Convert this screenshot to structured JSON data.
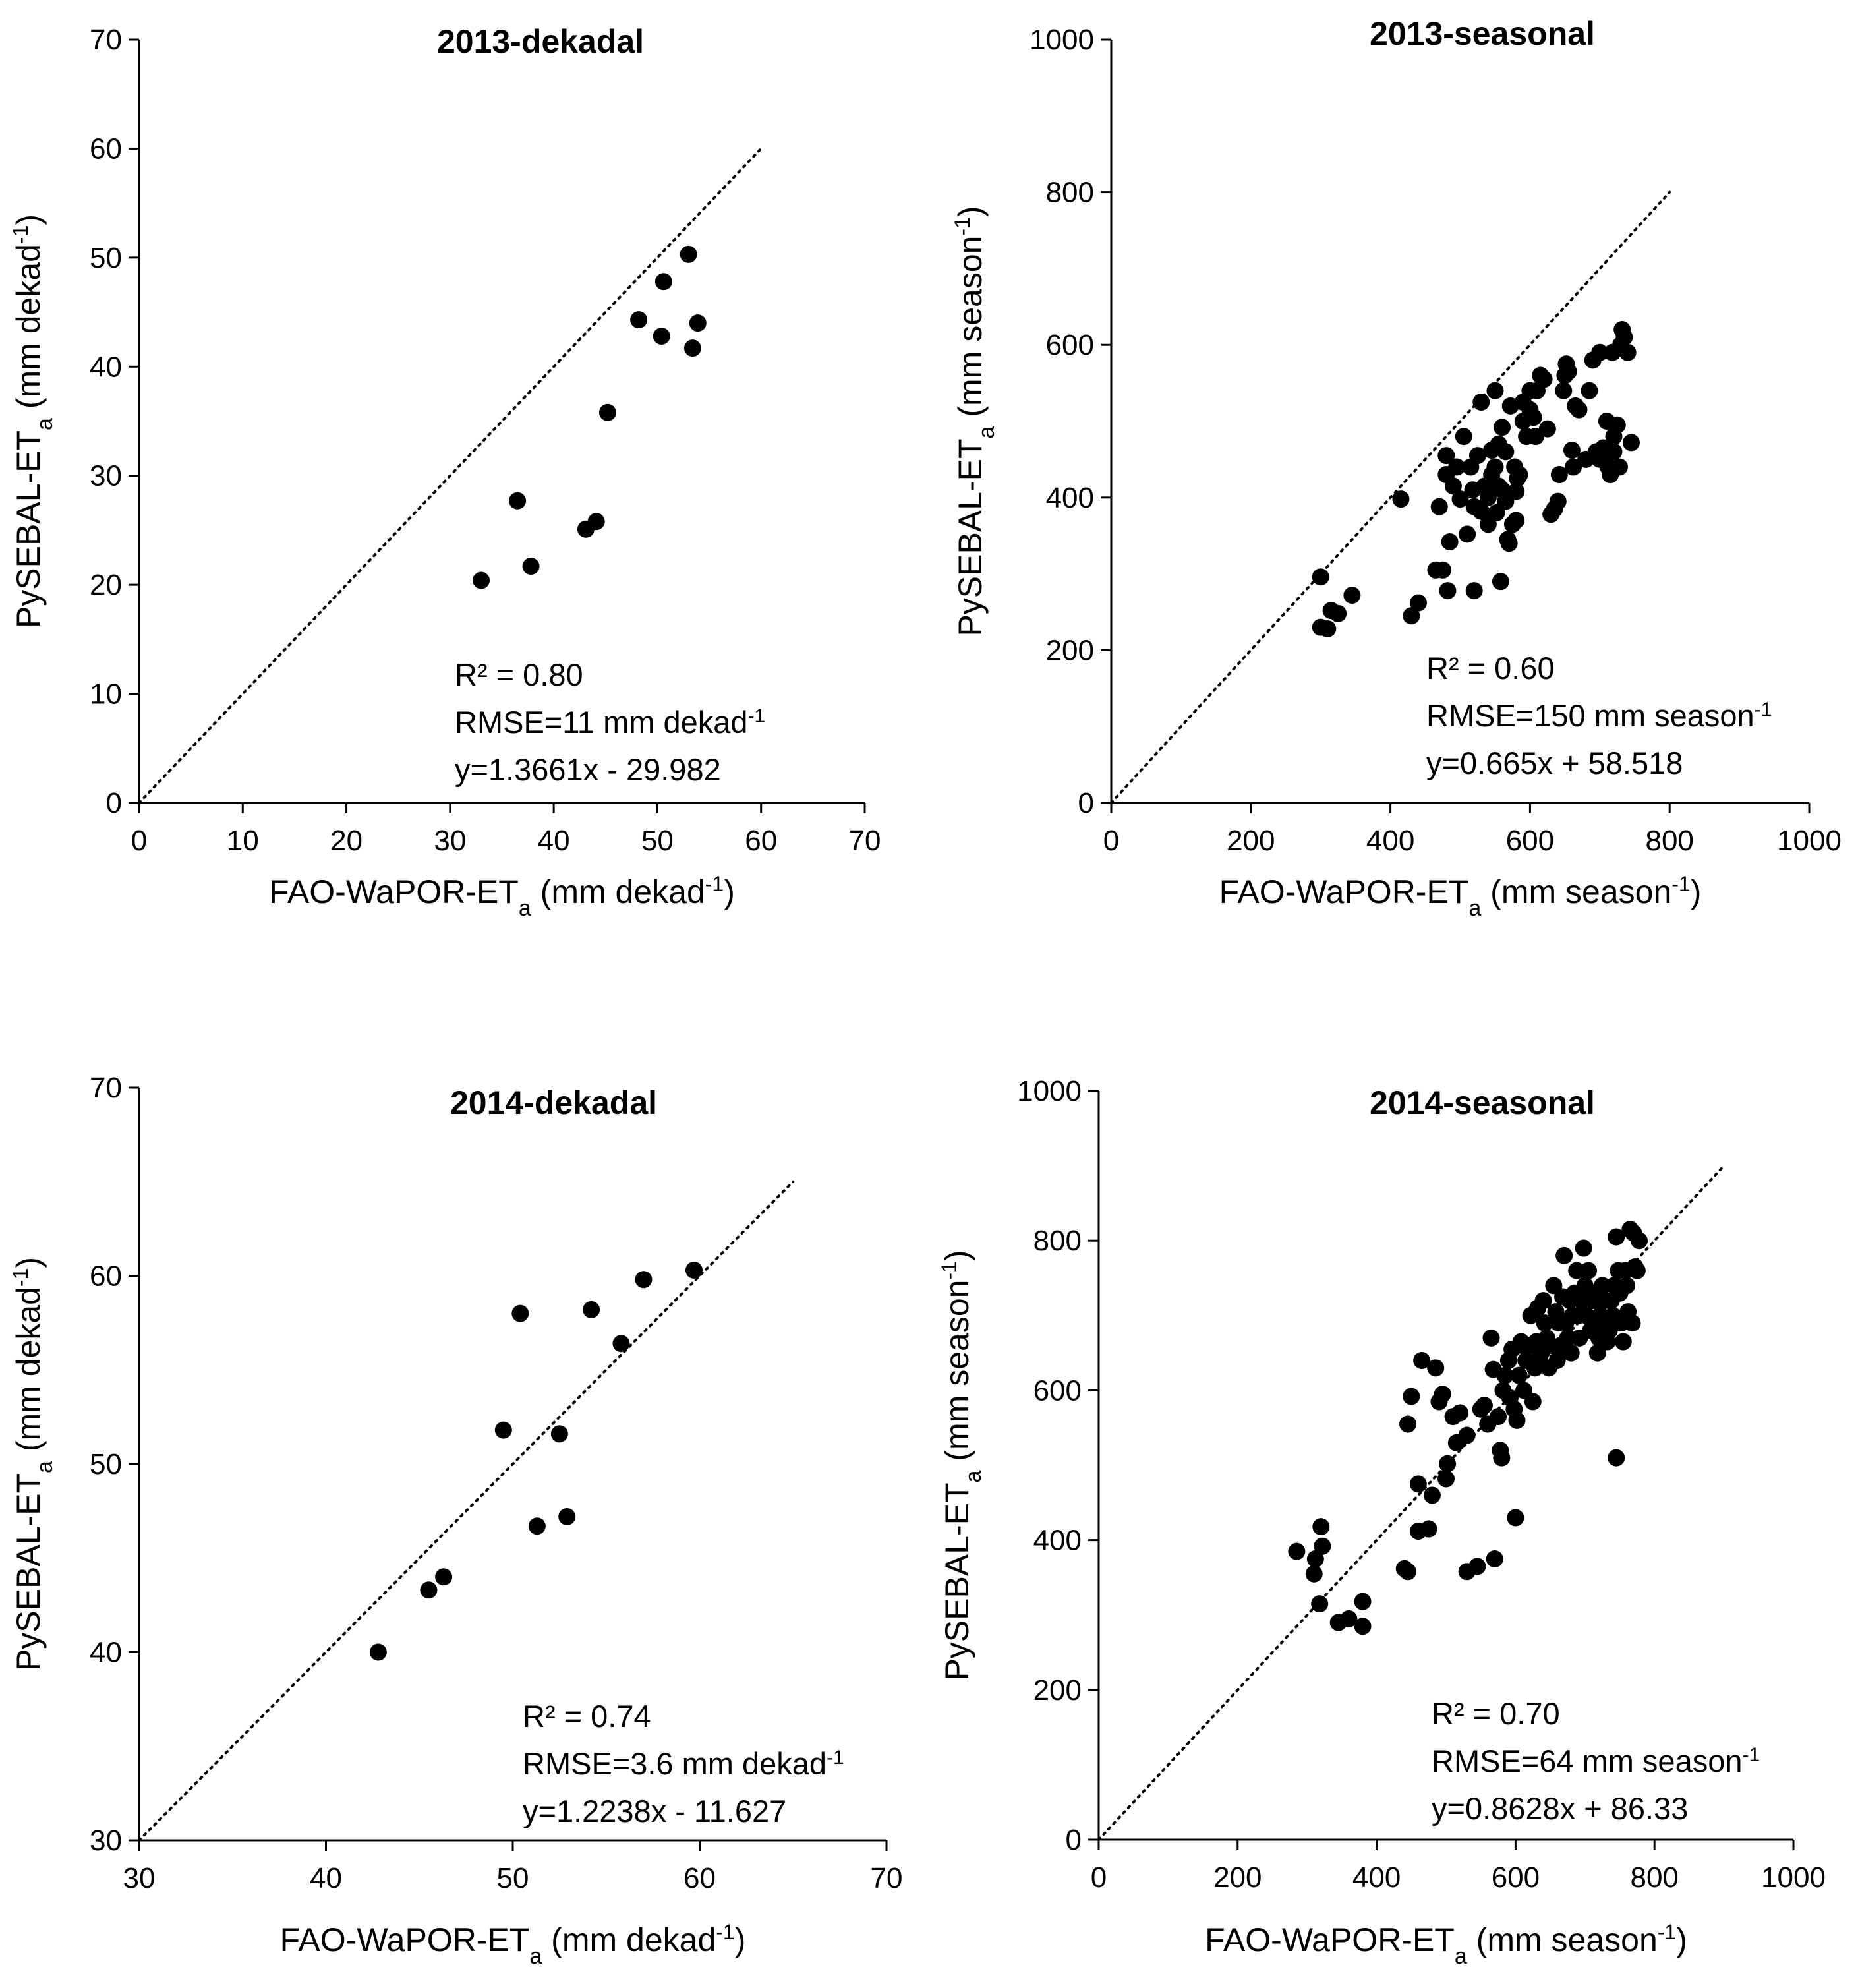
{
  "chart_data": [
    {
      "type": "scatter",
      "title": "2013-dekadal",
      "xlabel": {
        "main": "FAO-WaPOR-ET",
        "sub": "a",
        "unit_pre": " (mm dekad",
        "sup": "-1",
        "unit_post": ")"
      },
      "ylabel": {
        "main": "PySEBAL-ET",
        "sub": "a",
        "unit_pre": " (mm dekad",
        "sup": "-1",
        "unit_post": ")"
      },
      "xlim": [
        0,
        70
      ],
      "ylim": [
        0,
        70
      ],
      "xticks": [
        0,
        10,
        20,
        30,
        40,
        50,
        60,
        70
      ],
      "yticks": [
        0,
        10,
        20,
        30,
        40,
        50,
        60,
        70
      ],
      "one_to_one_line": [
        [
          0,
          0
        ],
        [
          60,
          60
        ]
      ],
      "stats": {
        "r2": "R² = 0.80",
        "rmse_pre": "RMSE=11 mm dekad",
        "rmse_sup": "-1",
        "equation": "y=1.3661x - 29.982"
      },
      "points": [
        [
          33.0,
          20.4
        ],
        [
          36.5,
          27.7
        ],
        [
          37.8,
          21.7
        ],
        [
          43.1,
          25.1
        ],
        [
          44.1,
          25.8
        ],
        [
          45.2,
          35.8
        ],
        [
          48.2,
          44.3
        ],
        [
          50.4,
          42.8
        ],
        [
          50.6,
          47.8
        ],
        [
          53.0,
          50.3
        ],
        [
          53.4,
          41.7
        ],
        [
          53.9,
          44.0
        ]
      ]
    },
    {
      "type": "scatter",
      "title": "2013-seasonal",
      "xlabel": {
        "main": "FAO-WaPOR-ET",
        "sub": "a",
        "unit_pre": " (mm season",
        "sup": "-1",
        "unit_post": ")"
      },
      "ylabel": {
        "main": "PySEBAL-ET",
        "sub": "a",
        "unit_pre": " (mm season",
        "sup": "-1",
        "unit_post": ")"
      },
      "xlim": [
        0,
        1000
      ],
      "ylim": [
        0,
        1000
      ],
      "xticks": [
        0,
        200,
        400,
        600,
        800,
        1000
      ],
      "yticks": [
        0,
        200,
        400,
        600,
        800,
        1000
      ],
      "one_to_one_line": [
        [
          0,
          0
        ],
        [
          800,
          800
        ]
      ],
      "stats": {
        "r2": "R² = 0.60",
        "rmse_pre": "RMSE=150 mm season",
        "rmse_sup": "-1",
        "equation": "y=0.665x + 58.518"
      },
      "points": [
        [
          300,
          296
        ],
        [
          300,
          230
        ],
        [
          310,
          228
        ],
        [
          315,
          252
        ],
        [
          325,
          248
        ],
        [
          345,
          272
        ],
        [
          415,
          398
        ],
        [
          430,
          245
        ],
        [
          440,
          262
        ],
        [
          465,
          305
        ],
        [
          470,
          388
        ],
        [
          475,
          305
        ],
        [
          480,
          455
        ],
        [
          480,
          430
        ],
        [
          482,
          278
        ],
        [
          485,
          342
        ],
        [
          490,
          415
        ],
        [
          495,
          440
        ],
        [
          500,
          398
        ],
        [
          505,
          480
        ],
        [
          510,
          352
        ],
        [
          515,
          440
        ],
        [
          518,
          410
        ],
        [
          520,
          388
        ],
        [
          520,
          278
        ],
        [
          525,
          455
        ],
        [
          530,
          525
        ],
        [
          530,
          382
        ],
        [
          535,
          415
        ],
        [
          540,
          400
        ],
        [
          540,
          365
        ],
        [
          545,
          430
        ],
        [
          545,
          462
        ],
        [
          550,
          540
        ],
        [
          550,
          440
        ],
        [
          552,
          380
        ],
        [
          555,
          415
        ],
        [
          555,
          470
        ],
        [
          558,
          290
        ],
        [
          560,
          492
        ],
        [
          560,
          410
        ],
        [
          565,
          460
        ],
        [
          565,
          395
        ],
        [
          568,
          345
        ],
        [
          570,
          340
        ],
        [
          572,
          520
        ],
        [
          575,
          365
        ],
        [
          578,
          440
        ],
        [
          580,
          370
        ],
        [
          580,
          408
        ],
        [
          582,
          425
        ],
        [
          585,
          430
        ],
        [
          590,
          500
        ],
        [
          590,
          525
        ],
        [
          595,
          480
        ],
        [
          600,
          540
        ],
        [
          600,
          515
        ],
        [
          605,
          505
        ],
        [
          608,
          480
        ],
        [
          610,
          540
        ],
        [
          615,
          560
        ],
        [
          620,
          555
        ],
        [
          625,
          490
        ],
        [
          630,
          378
        ],
        [
          635,
          385
        ],
        [
          640,
          395
        ],
        [
          642,
          430
        ],
        [
          648,
          540
        ],
        [
          650,
          560
        ],
        [
          652,
          575
        ],
        [
          655,
          565
        ],
        [
          660,
          462
        ],
        [
          662,
          440
        ],
        [
          665,
          520
        ],
        [
          670,
          515
        ],
        [
          680,
          450
        ],
        [
          685,
          540
        ],
        [
          690,
          580
        ],
        [
          695,
          460
        ],
        [
          700,
          590
        ],
        [
          700,
          450
        ],
        [
          705,
          465
        ],
        [
          710,
          500
        ],
        [
          712,
          440
        ],
        [
          715,
          430
        ],
        [
          715,
          462
        ],
        [
          718,
          590
        ],
        [
          720,
          480
        ],
        [
          720,
          460
        ],
        [
          725,
          495
        ],
        [
          728,
          440
        ],
        [
          730,
          600
        ],
        [
          732,
          620
        ],
        [
          735,
          610
        ],
        [
          740,
          590
        ],
        [
          745,
          472
        ]
      ]
    },
    {
      "type": "scatter",
      "title": "2014-dekadal",
      "xlabel": {
        "main": "FAO-WaPOR-ET",
        "sub": "a",
        "unit_pre": " (mm dekad",
        "sup": "-1",
        "unit_post": ")"
      },
      "ylabel": {
        "main": "PySEBAL-ET",
        "sub": "a",
        "unit_pre": " (mm dekad",
        "sup": "-1",
        "unit_post": ")"
      },
      "xlim": [
        30,
        70
      ],
      "ylim": [
        30,
        70
      ],
      "xticks": [
        30,
        40,
        50,
        60,
        70
      ],
      "yticks": [
        30,
        40,
        50,
        60,
        70
      ],
      "one_to_one_line": [
        [
          30,
          30
        ],
        [
          65,
          65
        ]
      ],
      "stats": {
        "r2": "R² = 0.74",
        "rmse_pre": "RMSE=3.6 mm dekad",
        "rmse_sup": "-1",
        "equation": "y=1.2238x - 11.627"
      },
      "points": [
        [
          42.8,
          40.0
        ],
        [
          45.5,
          43.3
        ],
        [
          46.3,
          44.0
        ],
        [
          49.5,
          51.8
        ],
        [
          50.4,
          58.0
        ],
        [
          51.3,
          46.7
        ],
        [
          52.5,
          51.6
        ],
        [
          52.9,
          47.2
        ],
        [
          54.2,
          58.2
        ],
        [
          55.8,
          56.4
        ],
        [
          57.0,
          59.8
        ],
        [
          59.7,
          60.3
        ]
      ]
    },
    {
      "type": "scatter",
      "title": "2014-seasonal",
      "xlabel": {
        "main": "FAO-WaPOR-ET",
        "sub": "a",
        "unit_pre": " (mm season",
        "sup": "-1",
        "unit_post": ")"
      },
      "ylabel": {
        "main": "PySEBAL-ET",
        "sub": "a",
        "unit_pre": " (mm season",
        "sup": "-1",
        "unit_post": ")"
      },
      "xlim": [
        0,
        1000
      ],
      "ylim": [
        0,
        1000
      ],
      "xticks": [
        0,
        200,
        400,
        600,
        800,
        1000
      ],
      "yticks": [
        0,
        200,
        400,
        600,
        800,
        1000
      ],
      "one_to_one_line": [
        [
          0,
          0
        ],
        [
          900,
          900
        ]
      ],
      "stats": {
        "r2": "R² = 0.70",
        "rmse_pre": "RMSE=64 mm season",
        "rmse_sup": "-1",
        "equation": "y=0.8628x + 86.33"
      },
      "points": [
        [
          285,
          385
        ],
        [
          310,
          355
        ],
        [
          312,
          375
        ],
        [
          318,
          315
        ],
        [
          320,
          418
        ],
        [
          322,
          392
        ],
        [
          345,
          290
        ],
        [
          360,
          295
        ],
        [
          380,
          318
        ],
        [
          380,
          285
        ],
        [
          440,
          362
        ],
        [
          445,
          358
        ],
        [
          445,
          555
        ],
        [
          450,
          592
        ],
        [
          460,
          412
        ],
        [
          460,
          475
        ],
        [
          465,
          640
        ],
        [
          475,
          415
        ],
        [
          480,
          460
        ],
        [
          485,
          630
        ],
        [
          490,
          585
        ],
        [
          495,
          595
        ],
        [
          500,
          482
        ],
        [
          502,
          502
        ],
        [
          510,
          565
        ],
        [
          515,
          530
        ],
        [
          520,
          570
        ],
        [
          530,
          540
        ],
        [
          530,
          358
        ],
        [
          545,
          365
        ],
        [
          550,
          575
        ],
        [
          555,
          580
        ],
        [
          560,
          555
        ],
        [
          565,
          670
        ],
        [
          568,
          628
        ],
        [
          570,
          375
        ],
        [
          575,
          565
        ],
        [
          578,
          520
        ],
        [
          580,
          510
        ],
        [
          582,
          600
        ],
        [
          585,
          620
        ],
        [
          590,
          640
        ],
        [
          592,
          590
        ],
        [
          595,
          655
        ],
        [
          598,
          575
        ],
        [
          600,
          430
        ],
        [
          602,
          560
        ],
        [
          605,
          620
        ],
        [
          608,
          665
        ],
        [
          610,
          660
        ],
        [
          612,
          600
        ],
        [
          615,
          640
        ],
        [
          620,
          660
        ],
        [
          622,
          700
        ],
        [
          625,
          585
        ],
        [
          628,
          630
        ],
        [
          630,
          665
        ],
        [
          632,
          710
        ],
        [
          635,
          645
        ],
        [
          638,
          655
        ],
        [
          640,
          720
        ],
        [
          642,
          690
        ],
        [
          645,
          670
        ],
        [
          648,
          630
        ],
        [
          650,
          660
        ],
        [
          655,
          740
        ],
        [
          658,
          705
        ],
        [
          660,
          640
        ],
        [
          662,
          690
        ],
        [
          665,
          660
        ],
        [
          668,
          725
        ],
        [
          670,
          780
        ],
        [
          672,
          690
        ],
        [
          675,
          670
        ],
        [
          678,
          720
        ],
        [
          680,
          650
        ],
        [
          682,
          700
        ],
        [
          685,
          730
        ],
        [
          688,
          760
        ],
        [
          690,
          700
        ],
        [
          692,
          670
        ],
        [
          695,
          720
        ],
        [
          698,
          790
        ],
        [
          700,
          740
        ],
        [
          702,
          700
        ],
        [
          705,
          760
        ],
        [
          708,
          680
        ],
        [
          710,
          730
        ],
        [
          712,
          720
        ],
        [
          715,
          690
        ],
        [
          718,
          650
        ],
        [
          720,
          670
        ],
        [
          722,
          700
        ],
        [
          725,
          740
        ],
        [
          728,
          720
        ],
        [
          730,
          690
        ],
        [
          732,
          665
        ],
        [
          735,
          680
        ],
        [
          738,
          720
        ],
        [
          740,
          700
        ],
        [
          742,
          740
        ],
        [
          745,
          510
        ],
        [
          745,
          805
        ],
        [
          748,
          760
        ],
        [
          750,
          730
        ],
        [
          752,
          690
        ],
        [
          755,
          665
        ],
        [
          758,
          760
        ],
        [
          760,
          740
        ],
        [
          762,
          705
        ],
        [
          765,
          815
        ],
        [
          768,
          690
        ],
        [
          770,
          810
        ],
        [
          772,
          765
        ],
        [
          775,
          760
        ],
        [
          778,
          800
        ]
      ]
    }
  ]
}
